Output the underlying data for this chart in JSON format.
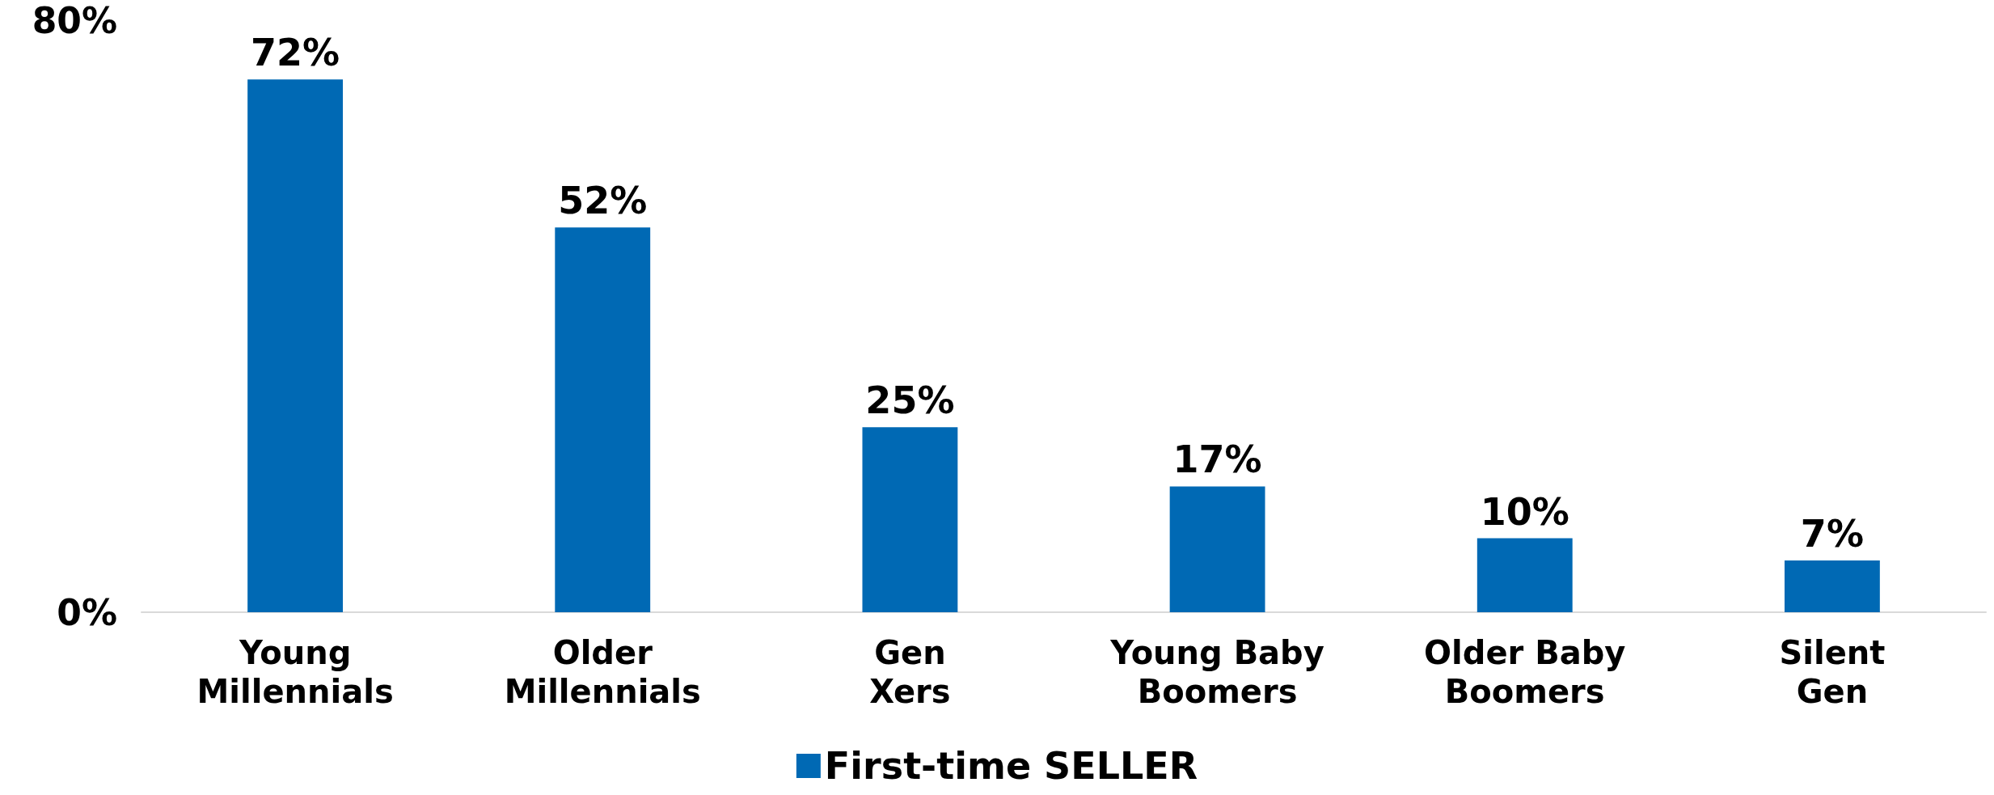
{
  "chart_data": {
    "type": "bar",
    "categories": [
      "Young Millennials",
      "Older Millennials",
      "Gen Xers",
      "Young Baby Boomers",
      "Older Baby Boomers",
      "Silent Gen"
    ],
    "series": [
      {
        "name": "First-time SELLER",
        "color": "#0069b4",
        "values": [
          72,
          52,
          25,
          17,
          10,
          7
        ],
        "value_labels": [
          "72%",
          "52%",
          "25%",
          "17%",
          "10%",
          "7%"
        ]
      }
    ],
    "ylim": [
      0,
      80
    ],
    "yticks": [
      {
        "value": 0,
        "label": "0%"
      },
      {
        "value": 80,
        "label": "80%"
      }
    ],
    "grid": false,
    "legend": "bottom"
  }
}
